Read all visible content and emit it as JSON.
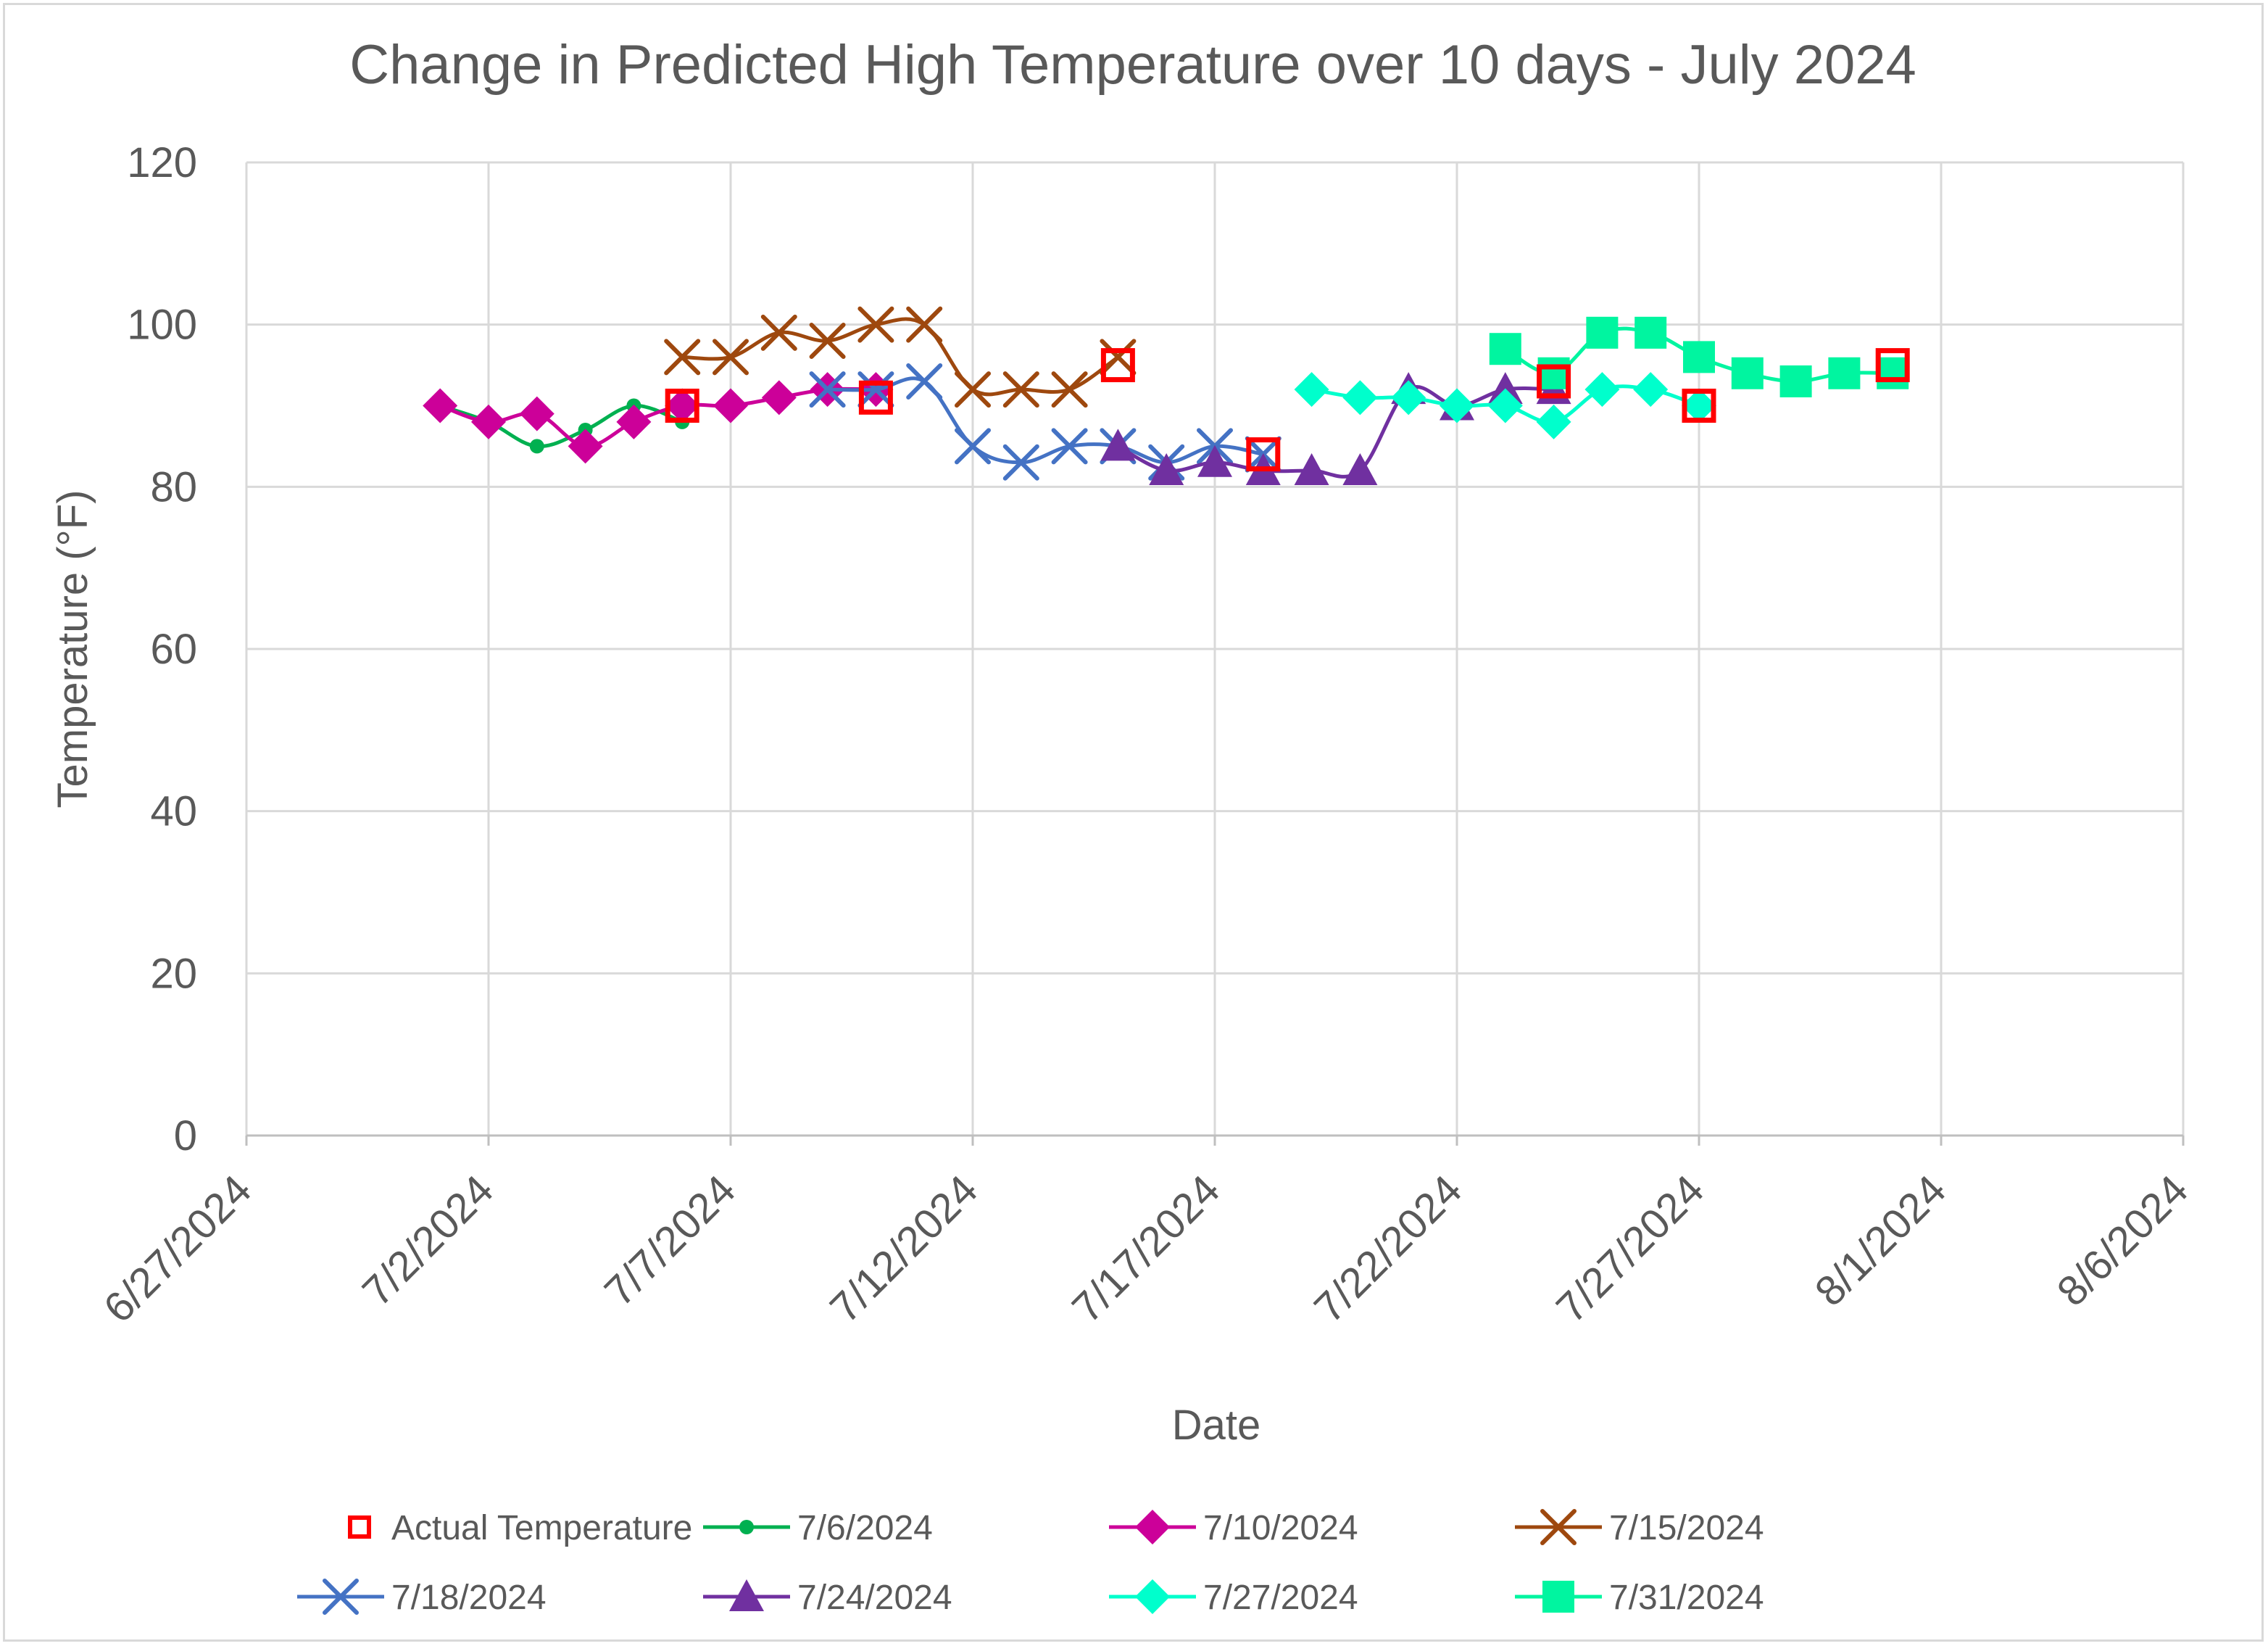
{
  "chart_data": {
    "type": "line",
    "title": "Change in Predicted High Temperature over 10 days - July 2024",
    "xlabel": "Date",
    "ylabel": "Temperature (°F)",
    "ylim": [
      0,
      120
    ],
    "yticks": [
      0,
      20,
      40,
      60,
      80,
      100,
      120
    ],
    "xlim": [
      "6/27/2024",
      "8/6/2024"
    ],
    "xticks": [
      "6/27/2024",
      "7/2/2024",
      "7/7/2024",
      "7/12/2024",
      "7/17/2024",
      "7/22/2024",
      "7/27/2024",
      "8/1/2024",
      "8/6/2024"
    ],
    "grid": true,
    "legend_position": "bottom",
    "series": [
      {
        "name": "Actual Temperature",
        "color": "#ff0000",
        "marker": "open-square",
        "line": false,
        "points": [
          {
            "x": "7/6/2024",
            "y": 90
          },
          {
            "x": "7/10/2024",
            "y": 91
          },
          {
            "x": "7/15/2024",
            "y": 95
          },
          {
            "x": "7/18/2024",
            "y": 84
          },
          {
            "x": "7/24/2024",
            "y": 93
          },
          {
            "x": "7/27/2024",
            "y": 90
          },
          {
            "x": "7/31/2024",
            "y": 95
          }
        ]
      },
      {
        "name": "7/6/2024",
        "color": "#00b050",
        "marker": "circle",
        "line": true,
        "points": [
          {
            "x": "7/1/2024",
            "y": 90
          },
          {
            "x": "7/2/2024",
            "y": 88
          },
          {
            "x": "7/3/2024",
            "y": 85
          },
          {
            "x": "7/4/2024",
            "y": 87
          },
          {
            "x": "7/5/2024",
            "y": 90
          },
          {
            "x": "7/6/2024",
            "y": 88
          }
        ]
      },
      {
        "name": "7/10/2024",
        "color": "#cc0099",
        "marker": "diamond",
        "line": true,
        "points": [
          {
            "x": "7/1/2024",
            "y": 90
          },
          {
            "x": "7/2/2024",
            "y": 88
          },
          {
            "x": "7/3/2024",
            "y": 89
          },
          {
            "x": "7/4/2024",
            "y": 85
          },
          {
            "x": "7/5/2024",
            "y": 88
          },
          {
            "x": "7/6/2024",
            "y": 90
          },
          {
            "x": "7/7/2024",
            "y": 90
          },
          {
            "x": "7/8/2024",
            "y": 91
          },
          {
            "x": "7/9/2024",
            "y": 92
          },
          {
            "x": "7/10/2024",
            "y": 92
          }
        ]
      },
      {
        "name": "7/15/2024",
        "color": "#9e480e",
        "marker": "x",
        "line": true,
        "points": [
          {
            "x": "7/6/2024",
            "y": 96
          },
          {
            "x": "7/7/2024",
            "y": 96
          },
          {
            "x": "7/8/2024",
            "y": 99
          },
          {
            "x": "7/9/2024",
            "y": 98
          },
          {
            "x": "7/10/2024",
            "y": 100
          },
          {
            "x": "7/11/2024",
            "y": 100
          },
          {
            "x": "7/12/2024",
            "y": 92
          },
          {
            "x": "7/13/2024",
            "y": 92
          },
          {
            "x": "7/14/2024",
            "y": 92
          },
          {
            "x": "7/15/2024",
            "y": 96
          }
        ]
      },
      {
        "name": "7/18/2024",
        "color": "#4472c4",
        "marker": "x",
        "line": true,
        "points": [
          {
            "x": "7/9/2024",
            "y": 92
          },
          {
            "x": "7/10/2024",
            "y": 92
          },
          {
            "x": "7/11/2024",
            "y": 93
          },
          {
            "x": "7/12/2024",
            "y": 85
          },
          {
            "x": "7/13/2024",
            "y": 83
          },
          {
            "x": "7/14/2024",
            "y": 85
          },
          {
            "x": "7/15/2024",
            "y": 85
          },
          {
            "x": "7/16/2024",
            "y": 83
          },
          {
            "x": "7/17/2024",
            "y": 85
          },
          {
            "x": "7/18/2024",
            "y": 84
          }
        ]
      },
      {
        "name": "7/24/2024",
        "color": "#7030a0",
        "marker": "triangle",
        "line": true,
        "points": [
          {
            "x": "7/15/2024",
            "y": 85
          },
          {
            "x": "7/16/2024",
            "y": 82
          },
          {
            "x": "7/17/2024",
            "y": 83
          },
          {
            "x": "7/18/2024",
            "y": 82
          },
          {
            "x": "7/19/2024",
            "y": 82
          },
          {
            "x": "7/20/2024",
            "y": 82
          },
          {
            "x": "7/21/2024",
            "y": 92
          },
          {
            "x": "7/22/2024",
            "y": 90
          },
          {
            "x": "7/23/2024",
            "y": 92
          },
          {
            "x": "7/24/2024",
            "y": 92
          }
        ]
      },
      {
        "name": "7/27/2024",
        "color": "#00ffcc",
        "marker": "diamond",
        "line": true,
        "points": [
          {
            "x": "7/19/2024",
            "y": 92
          },
          {
            "x": "7/20/2024",
            "y": 91
          },
          {
            "x": "7/21/2024",
            "y": 91
          },
          {
            "x": "7/22/2024",
            "y": 90
          },
          {
            "x": "7/23/2024",
            "y": 90
          },
          {
            "x": "7/24/2024",
            "y": 88
          },
          {
            "x": "7/25/2024",
            "y": 92
          },
          {
            "x": "7/26/2024",
            "y": 92
          },
          {
            "x": "7/27/2024",
            "y": 90
          }
        ]
      },
      {
        "name": "7/31/2024",
        "color": "#00f5a0",
        "marker": "square",
        "line": true,
        "points": [
          {
            "x": "7/23/2024",
            "y": 97
          },
          {
            "x": "7/24/2024",
            "y": 94
          },
          {
            "x": "7/25/2024",
            "y": 99
          },
          {
            "x": "7/26/2024",
            "y": 99
          },
          {
            "x": "7/27/2024",
            "y": 96
          },
          {
            "x": "7/28/2024",
            "y": 94
          },
          {
            "x": "7/29/2024",
            "y": 93
          },
          {
            "x": "7/30/2024",
            "y": 94
          },
          {
            "x": "7/31/2024",
            "y": 94
          }
        ]
      }
    ]
  }
}
